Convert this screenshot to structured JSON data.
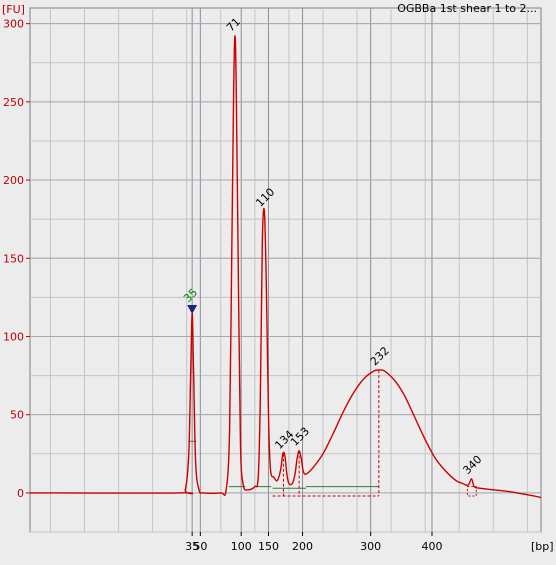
{
  "chart_data": {
    "type": "line",
    "title": "OGBBa 1st shear 1 to 2...",
    "ylabel": "[FU]",
    "xlabel": "[bp]",
    "ylim": [
      -25,
      310
    ],
    "yticks": [
      0,
      50,
      100,
      150,
      200,
      250,
      300
    ],
    "xticks": [
      {
        "label": "35",
        "t": 45.8
      },
      {
        "label": "50",
        "t": 47.0
      },
      {
        "label": "100",
        "t": 53.0
      },
      {
        "label": "150",
        "t": 57.0
      },
      {
        "label": "200",
        "t": 62.0
      },
      {
        "label": "300",
        "t": 72.0
      },
      {
        "label": "400",
        "t": 81.0
      }
    ],
    "trace_color": "#cc0000",
    "grid": true,
    "series": [
      {
        "points": [
          [
            22,
            0
          ],
          [
            44,
            0
          ],
          [
            44.8,
            2
          ],
          [
            45.3,
            25
          ],
          [
            45.6,
            80
          ],
          [
            45.8,
            115
          ],
          [
            46.0,
            80
          ],
          [
            46.3,
            20
          ],
          [
            46.8,
            2
          ],
          [
            47.5,
            0
          ],
          [
            50,
            0
          ],
          [
            50.8,
            2
          ],
          [
            51.3,
            40
          ],
          [
            51.6,
            150
          ],
          [
            51.9,
            260
          ],
          [
            52.1,
            292
          ],
          [
            52.3,
            250
          ],
          [
            52.6,
            130
          ],
          [
            52.9,
            30
          ],
          [
            53.3,
            5
          ],
          [
            54,
            2
          ],
          [
            55,
            4
          ],
          [
            55.5,
            10
          ],
          [
            55.8,
            60
          ],
          [
            56.1,
            160
          ],
          [
            56.4,
            180
          ],
          [
            56.7,
            130
          ],
          [
            57.0,
            50
          ],
          [
            57.3,
            15
          ],
          [
            57.8,
            10
          ],
          [
            58.3,
            8
          ],
          [
            58.8,
            15
          ],
          [
            59.1,
            25
          ],
          [
            59.4,
            24
          ],
          [
            59.7,
            12
          ],
          [
            60.0,
            6
          ],
          [
            60.5,
            6
          ],
          [
            60.9,
            12
          ],
          [
            61.2,
            22
          ],
          [
            61.5,
            27
          ],
          [
            61.8,
            22
          ],
          [
            62.1,
            14
          ],
          [
            62.5,
            12
          ],
          [
            63.5,
            16
          ],
          [
            65,
            25
          ],
          [
            66.5,
            38
          ],
          [
            68,
            52
          ],
          [
            69.5,
            64
          ],
          [
            71,
            73
          ],
          [
            72.5,
            78
          ],
          [
            73.2,
            78.5
          ],
          [
            74,
            78
          ],
          [
            75.5,
            72
          ],
          [
            77,
            62
          ],
          [
            78.5,
            48
          ],
          [
            80,
            34
          ],
          [
            81.5,
            22
          ],
          [
            83,
            14
          ],
          [
            84.5,
            8
          ],
          [
            85.5,
            6
          ],
          [
            86.3,
            5
          ],
          [
            86.8,
            9
          ],
          [
            87.2,
            4
          ],
          [
            88,
            3
          ],
          [
            90,
            2
          ],
          [
            92,
            1
          ],
          [
            93.5,
            0
          ],
          [
            96,
            -2
          ],
          [
            97,
            -3
          ]
        ]
      }
    ],
    "peaks": [
      {
        "label": "35",
        "t": 45.8,
        "y": 115,
        "marker": true
      },
      {
        "label": "71",
        "t": 52.1,
        "y": 292
      },
      {
        "label": "110",
        "t": 56.4,
        "y": 180
      },
      {
        "label": "134",
        "t": 59.2,
        "y": 25
      },
      {
        "label": "153",
        "t": 61.5,
        "y": 27
      },
      {
        "label": "232",
        "t": 73.2,
        "y": 78.5
      },
      {
        "label": "340",
        "t": 86.8,
        "y": 9
      }
    ]
  }
}
